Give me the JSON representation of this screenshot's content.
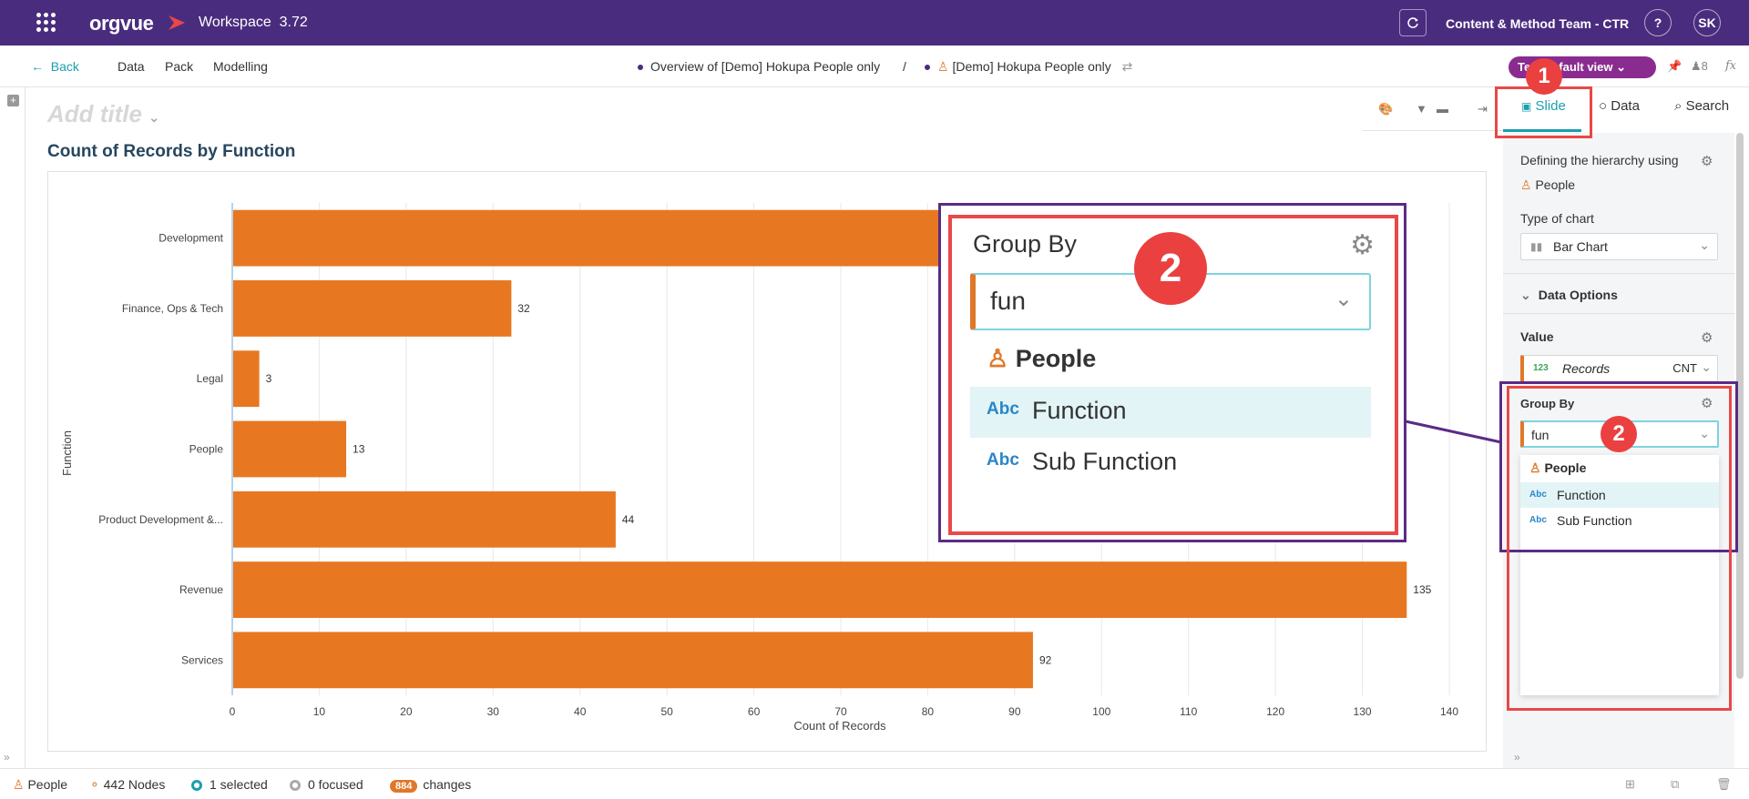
{
  "app": {
    "logo": "orgvue",
    "workspace": "Workspace",
    "version": "3.72",
    "team": "Content & Method Team - CTR",
    "help": "?",
    "user_initials": "SK"
  },
  "nav": {
    "back": "Back",
    "items": [
      "Data",
      "Pack",
      "Modelling"
    ],
    "crumb_overview": "Overview of [Demo] Hokupa People only",
    "crumb_sep": "/",
    "crumb_dataset": "[Demo] Hokupa People only",
    "view_label": "Te... Default view",
    "user_count": "8",
    "fx": "fx"
  },
  "canvas": {
    "add_title": "Add title",
    "chart_title": "Count of Records by Function"
  },
  "chart_data": {
    "type": "bar",
    "orientation": "horizontal",
    "categories": [
      "Development",
      "Finance, Ops & Tech",
      "Legal",
      "People",
      "Product Development &...",
      "Revenue",
      "Services"
    ],
    "values": [
      null,
      32,
      3,
      13,
      44,
      135,
      92
    ],
    "value_labels": [
      "",
      "32",
      "3",
      "13",
      "44",
      "135",
      "92"
    ],
    "xlabel": "Count of Records",
    "ylabel": "Function",
    "xlim": [
      0,
      140
    ],
    "xticks": [
      "0",
      "10",
      "20",
      "30",
      "40",
      "50",
      "60",
      "70",
      "80",
      "90",
      "100",
      "110",
      "120",
      "130",
      "140"
    ],
    "grid": true,
    "bar_color": "#e87722"
  },
  "panel": {
    "tabs": [
      "Slide",
      "Data",
      "Search"
    ],
    "hierarchy_label": "Defining the hierarchy using",
    "hierarchy_value": "People",
    "chart_type_label": "Type of chart",
    "chart_type_value": "Bar Chart",
    "data_options": "Data Options",
    "value_label": "Value",
    "value_num_tag": "123",
    "value_field": "Records",
    "value_agg": "CNT",
    "group_by_label": "Group By",
    "group_by_input": "fun",
    "dropdown": {
      "header": "People",
      "options": [
        {
          "tag": "Abc",
          "label": "Function",
          "selected": true
        },
        {
          "tag": "Abc",
          "label": "Sub Function",
          "selected": false
        }
      ]
    }
  },
  "zoom": {
    "title": "Group By",
    "input": "fun",
    "header": "People",
    "options": [
      {
        "tag": "Abc",
        "label": "Function"
      },
      {
        "tag": "Abc",
        "label": "Sub Function"
      }
    ]
  },
  "markers": [
    "1",
    "2",
    "2"
  ],
  "status": {
    "dataset": "People",
    "nodes": "442 Nodes",
    "selected": "1 selected",
    "focused": "0 focused",
    "changes_count": "884",
    "changes_label": "changes"
  },
  "colors": {
    "topbar": "#4a2c7f",
    "accent": "#1a9fb0",
    "bar": "#e87722",
    "highlight_red": "#e84848",
    "highlight_purple": "#5b2a86"
  }
}
